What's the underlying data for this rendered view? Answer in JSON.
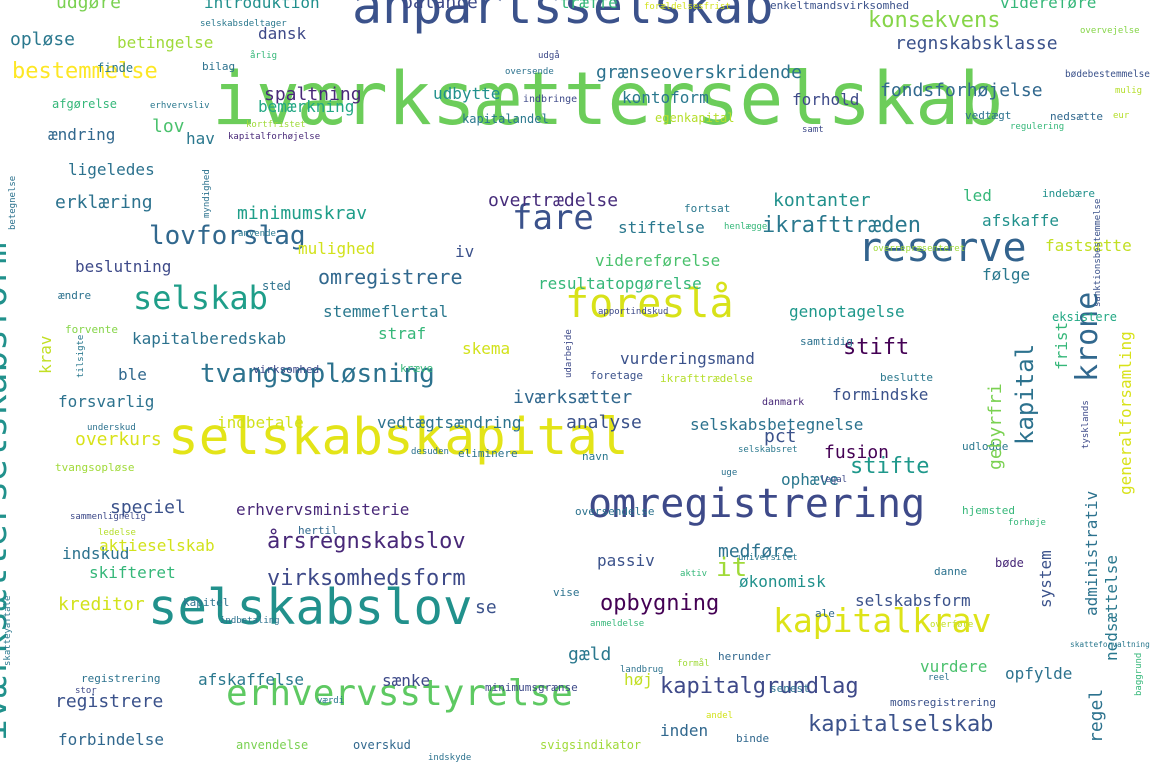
{
  "words": [
    {
      "text": "iværksætterselskab",
      "color": "#6ccd5a"
    },
    {
      "text": "anpartsselskab",
      "color": "#3b528b"
    },
    {
      "text": "selskabskapital",
      "color": "#e3e418"
    },
    {
      "text": "selskabslov",
      "color": "#21918c"
    },
    {
      "text": "omregistrering",
      "color": "#3e4a89"
    },
    {
      "text": "foreslå",
      "color": "#d8e219"
    },
    {
      "text": "reserve",
      "color": "#33638d"
    },
    {
      "text": "erhvervsstyrelse",
      "color": "#5ec962"
    },
    {
      "text": "kapitalkrav",
      "color": "#dde318"
    },
    {
      "text": "selskab",
      "color": "#1f9e89"
    },
    {
      "text": "fare",
      "color": "#3b528b"
    },
    {
      "text": "tvangsopløsning",
      "color": "#2c728e"
    },
    {
      "text": "lovforslag",
      "color": "#31688e"
    },
    {
      "text": "konsekvens",
      "color": "#86d549"
    },
    {
      "text": "bestemmelse",
      "color": "#fde725"
    },
    {
      "text": "kapitalgrundlag",
      "color": "#3e4989"
    },
    {
      "text": "kapitalselskab",
      "color": "#3b528b"
    },
    {
      "text": "virksomhedsform",
      "color": "#3e4a89"
    },
    {
      "text": "årsregnskabslov",
      "color": "#482878"
    },
    {
      "text": "opbygning",
      "color": "#440154"
    },
    {
      "text": "ikrafttræden",
      "color": "#2a788e"
    },
    {
      "text": "omregistrere",
      "color": "#31688e"
    },
    {
      "text": "stifte",
      "color": "#1f988b"
    },
    {
      "text": "stift",
      "color": "#440154"
    },
    {
      "text": "krone",
      "color": "#31688e"
    },
    {
      "text": "kapital",
      "color": "#2c728e"
    },
    {
      "text": "udgøre",
      "color": "#7ad151"
    },
    {
      "text": "introduktion",
      "color": "#21908d"
    },
    {
      "text": "balance",
      "color": "#3e4a89"
    },
    {
      "text": "træffe",
      "color": "#35b779"
    },
    {
      "text": "forældelsesfrist",
      "color": "#d2e21b"
    },
    {
      "text": "enkeltmandsvirksomhed",
      "color": "#3b528b"
    },
    {
      "text": "videreføre",
      "color": "#35b779"
    },
    {
      "text": "opløse",
      "color": "#2a788e"
    },
    {
      "text": "betingelse",
      "color": "#9fda3a"
    },
    {
      "text": "dansk",
      "color": "#3e4a89"
    },
    {
      "text": "spaltning",
      "color": "#482878"
    },
    {
      "text": "grænseoverskridende",
      "color": "#2c728e"
    },
    {
      "text": "regnskabsklasse",
      "color": "#3b528b"
    },
    {
      "text": "udbytte",
      "color": "#21908d"
    },
    {
      "text": "fondsforhøjelse",
      "color": "#31688e"
    },
    {
      "text": "kontoform",
      "color": "#2a788e"
    },
    {
      "text": "lov",
      "color": "#4ac16d"
    },
    {
      "text": "forhold",
      "color": "#3e4a89"
    },
    {
      "text": "bemærkning",
      "color": "#22a884"
    },
    {
      "text": "indbringe",
      "color": "#3e4a89"
    },
    {
      "text": "kapitalandel",
      "color": "#2a788e"
    },
    {
      "text": "egenkapital",
      "color": "#b5de2b"
    },
    {
      "text": "vedtægt",
      "color": "#2c728e"
    },
    {
      "text": "nedsætte",
      "color": "#31688e"
    },
    {
      "text": "ændring",
      "color": "#31688e"
    },
    {
      "text": "hav",
      "color": "#2a788e"
    },
    {
      "text": "ligeledes",
      "color": "#2c728e"
    },
    {
      "text": "erklæring",
      "color": "#2c728e"
    },
    {
      "text": "minimumskrav",
      "color": "#1f9e89"
    },
    {
      "text": "overtrædelse",
      "color": "#472d7b"
    },
    {
      "text": "kontanter",
      "color": "#21918c"
    },
    {
      "text": "led",
      "color": "#35b779"
    },
    {
      "text": "indebære",
      "color": "#21918c"
    },
    {
      "text": "stiftelse",
      "color": "#2a788e"
    },
    {
      "text": "afskaffe",
      "color": "#21918c"
    },
    {
      "text": "mulighed",
      "color": "#d2e21b"
    },
    {
      "text": "iv",
      "color": "#3b528b"
    },
    {
      "text": "fastsætte",
      "color": "#c2df23"
    },
    {
      "text": "videreførelse",
      "color": "#4ac16d"
    },
    {
      "text": "beslutning",
      "color": "#3e4a89"
    },
    {
      "text": "sted",
      "color": "#2c728e"
    },
    {
      "text": "resultatopgørelse",
      "color": "#35b779"
    },
    {
      "text": "følge",
      "color": "#2a788e"
    },
    {
      "text": "stemmeflertal",
      "color": "#2a788e"
    },
    {
      "text": "genoptagelse",
      "color": "#1f988b"
    },
    {
      "text": "eksistere",
      "color": "#22a884"
    },
    {
      "text": "kapitalberedskab",
      "color": "#2c728e"
    },
    {
      "text": "straf",
      "color": "#35b779"
    },
    {
      "text": "skema",
      "color": "#d2e21b"
    },
    {
      "text": "samtidig",
      "color": "#2c728e"
    },
    {
      "text": "vurderingsmand",
      "color": "#3b528b"
    },
    {
      "text": "ble",
      "color": "#31688e"
    },
    {
      "text": "virksomhed",
      "color": "#3e4a89"
    },
    {
      "text": "kræve",
      "color": "#35b779"
    },
    {
      "text": "foretage",
      "color": "#3b528b"
    },
    {
      "text": "ikrafttrædelse",
      "color": "#b5de2b"
    },
    {
      "text": "beslutte",
      "color": "#2a788e"
    },
    {
      "text": "forsvarlig",
      "color": "#2c728e"
    },
    {
      "text": "iværksætter",
      "color": "#31688e"
    },
    {
      "text": "formindske",
      "color": "#3b528b"
    },
    {
      "text": "danmark",
      "color": "#482878"
    },
    {
      "text": "indbetale",
      "color": "#d2e21b"
    },
    {
      "text": "vedtægtsændring",
      "color": "#2c728e"
    },
    {
      "text": "analyse",
      "color": "#3b528b"
    },
    {
      "text": "selskabsbetegnelse",
      "color": "#2c728e"
    },
    {
      "text": "overkurs",
      "color": "#d8e219"
    },
    {
      "text": "fusion",
      "color": "#440154"
    },
    {
      "text": "pct",
      "color": "#3b528b"
    },
    {
      "text": "ophæve",
      "color": "#2a788e"
    },
    {
      "text": "tvangsopløse",
      "color": "#a0da39"
    },
    {
      "text": "eliminere",
      "color": "#2c728e"
    },
    {
      "text": "udlodde",
      "color": "#2a788e"
    },
    {
      "text": "speciel",
      "color": "#3b528b"
    },
    {
      "text": "erhvervsministerie",
      "color": "#482878"
    },
    {
      "text": "hertil",
      "color": "#31688e"
    },
    {
      "text": "oversendelse",
      "color": "#2c728e"
    },
    {
      "text": "hjemsted",
      "color": "#35b779"
    },
    {
      "text": "indskud",
      "color": "#2c728e"
    },
    {
      "text": "aktieselskab",
      "color": "#d2e21b"
    },
    {
      "text": "skifteret",
      "color": "#35b779"
    },
    {
      "text": "passiv",
      "color": "#3b528b"
    },
    {
      "text": "medføre",
      "color": "#2c728e"
    },
    {
      "text": "danne",
      "color": "#2c728e"
    },
    {
      "text": "bøde",
      "color": "#482878"
    },
    {
      "text": "kreditor",
      "color": "#d2e21b"
    },
    {
      "text": "kapitel",
      "color": "#2c728e"
    },
    {
      "text": "vise",
      "color": "#2c728e"
    },
    {
      "text": "økonomisk",
      "color": "#21918c"
    },
    {
      "text": "selskabsform",
      "color": "#3b528b"
    },
    {
      "text": "ale",
      "color": "#31688e"
    },
    {
      "text": "se",
      "color": "#3b528b"
    },
    {
      "text": "gæld",
      "color": "#2a788e"
    },
    {
      "text": "sænke",
      "color": "#3e4a89"
    },
    {
      "text": "minimumsgrænse",
      "color": "#3e4a89"
    },
    {
      "text": "høj",
      "color": "#c2df23"
    },
    {
      "text": "vurdere",
      "color": "#4ac16d"
    },
    {
      "text": "opfylde",
      "color": "#2c728e"
    },
    {
      "text": "registrering",
      "color": "#2c728e"
    },
    {
      "text": "afskaffelse",
      "color": "#2a788e"
    },
    {
      "text": "senest",
      "color": "#2c728e"
    },
    {
      "text": "herunder",
      "color": "#31688e"
    },
    {
      "text": "registrere",
      "color": "#3b528b"
    },
    {
      "text": "inden",
      "color": "#31688e"
    },
    {
      "text": "binde",
      "color": "#31688e"
    },
    {
      "text": "forbindelse",
      "color": "#31688e"
    },
    {
      "text": "anvendelse",
      "color": "#7ad151"
    },
    {
      "text": "overskud",
      "color": "#31688e"
    },
    {
      "text": "svigsindikator",
      "color": "#a0da39"
    },
    {
      "text": "momsregistrering",
      "color": "#3b528b"
    },
    {
      "text": "system",
      "color": "#3b528b"
    },
    {
      "text": "nedsættelse",
      "color": "#2a788e"
    },
    {
      "text": "administrativ",
      "color": "#2c728e"
    },
    {
      "text": "regel",
      "color": "#2c728e"
    },
    {
      "text": "gebyrfri",
      "color": "#7ad151"
    },
    {
      "text": "frist",
      "color": "#35b779"
    },
    {
      "text": "generalforsamling",
      "color": "#d8e219"
    },
    {
      "text": "iværksætterselskabsform",
      "color": "#21918c"
    },
    {
      "text": "krav",
      "color": "#c2df23"
    },
    {
      "text": "it",
      "color": "#a0da39"
    },
    {
      "text": "overvejelse",
      "color": "#86d549"
    },
    {
      "text": "mulig",
      "color": "#b5de2b"
    },
    {
      "text": "finde",
      "color": "#2a788e"
    },
    {
      "text": "bilag",
      "color": "#2c728e"
    },
    {
      "text": "årlig",
      "color": "#35b779"
    },
    {
      "text": "oversende",
      "color": "#2c728e"
    },
    {
      "text": "bødebestemmelse",
      "color": "#3b528b"
    },
    {
      "text": "afgørelse",
      "color": "#35b779"
    },
    {
      "text": "erhvervsliv",
      "color": "#2a788e"
    },
    {
      "text": "kortfristet",
      "color": "#a0da39"
    },
    {
      "text": "regulering",
      "color": "#35b779"
    },
    {
      "text": "eur",
      "color": "#b5de2b"
    },
    {
      "text": "samt",
      "color": "#3e4a89"
    },
    {
      "text": "kapitalforhøjelse",
      "color": "#482878"
    },
    {
      "text": "fortsat",
      "color": "#2a788e"
    },
    {
      "text": "henlægge",
      "color": "#35b779"
    },
    {
      "text": "overrepræsenteret",
      "color": "#a0da39"
    },
    {
      "text": "anvende",
      "color": "#2a788e"
    },
    {
      "text": "ændre",
      "color": "#2c728e"
    },
    {
      "text": "apportindskud",
      "color": "#3e4a89"
    },
    {
      "text": "forvente",
      "color": "#86d549"
    },
    {
      "text": "underskud",
      "color": "#2c728e"
    },
    {
      "text": "desuden",
      "color": "#2c728e"
    },
    {
      "text": "navn",
      "color": "#2a788e"
    },
    {
      "text": "selskabsret",
      "color": "#2a788e"
    },
    {
      "text": "uge",
      "color": "#2c728e"
    },
    {
      "text": "legal",
      "color": "#3e4a89"
    },
    {
      "text": "sammenlignelig",
      "color": "#3e4a89"
    },
    {
      "text": "ledelse",
      "color": "#b5de2b"
    },
    {
      "text": "universitet",
      "color": "#2a788e"
    },
    {
      "text": "aktiv",
      "color": "#35b779"
    },
    {
      "text": "indbetaling",
      "color": "#2c728e"
    },
    {
      "text": "anmeldelse",
      "color": "#35b779"
    },
    {
      "text": "stor",
      "color": "#3e4a89"
    },
    {
      "text": "værdi",
      "color": "#2a788e"
    },
    {
      "text": "indskyde",
      "color": "#2c728e"
    },
    {
      "text": "landbrug",
      "color": "#2c728e"
    },
    {
      "text": "formål",
      "color": "#a0da39"
    },
    {
      "text": "reel",
      "color": "#2c728e"
    },
    {
      "text": "forhøje",
      "color": "#35b779"
    },
    {
      "text": "andel",
      "color": "#d2e21b"
    },
    {
      "text": "overføre",
      "color": "#c2df23"
    },
    {
      "text": "skatteforvaltning",
      "color": "#2a788e"
    },
    {
      "text": "baggrund",
      "color": "#35b779"
    },
    {
      "text": "sanktionsbestemmelse",
      "color": "#3b528b"
    },
    {
      "text": "udarbejde",
      "color": "#3e4a89"
    },
    {
      "text": "tysklands",
      "color": "#3e4a89"
    },
    {
      "text": "tilsigte",
      "color": "#2a788e"
    },
    {
      "text": "myndighed",
      "color": "#2c728e"
    },
    {
      "text": "betegnelse",
      "color": "#2c728e"
    },
    {
      "text": "skatteyaftale",
      "color": "#2a788e"
    },
    {
      "text": "selskabsdeltager",
      "color": "#2a788e"
    },
    {
      "text": "udgå",
      "color": "#3e4a89"
    },
    {
      "text": "sende",
      "color": "#3e4a89"
    }
  ]
}
